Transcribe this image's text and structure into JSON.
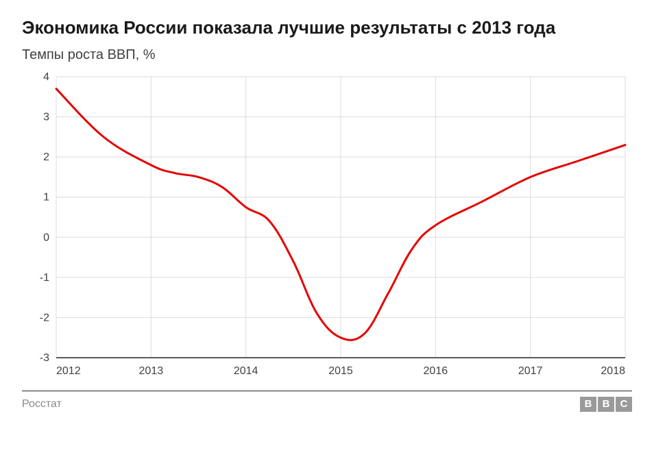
{
  "title": "Экономика России показала лучшие результаты с 2013 года",
  "subtitle": "Темпы роста ВВП, %",
  "source": "Росстат",
  "logo_letters": [
    "B",
    "B",
    "C"
  ],
  "chart": {
    "type": "line",
    "background_color": "#ffffff",
    "grid_color": "#dcdcdc",
    "axis_color": "#222222",
    "tick_font_size": 16,
    "tick_color": "#404040",
    "xlim": [
      2012,
      2018
    ],
    "ylim": [
      -3,
      4
    ],
    "xtick_step": 1,
    "ytick_step": 1,
    "xticks": [
      2012,
      2013,
      2014,
      2015,
      2016,
      2017,
      2018
    ],
    "yticks": [
      -3,
      -2,
      -1,
      0,
      1,
      2,
      3,
      4
    ],
    "series": [
      {
        "name": "gdp_growth",
        "color": "#e60000",
        "line_width": 3,
        "points": [
          {
            "x": 2012.0,
            "y": 3.7
          },
          {
            "x": 2012.5,
            "y": 2.5
          },
          {
            "x": 2013.0,
            "y": 1.8
          },
          {
            "x": 2013.25,
            "y": 1.6
          },
          {
            "x": 2013.5,
            "y": 1.5
          },
          {
            "x": 2013.75,
            "y": 1.25
          },
          {
            "x": 2014.0,
            "y": 0.75
          },
          {
            "x": 2014.25,
            "y": 0.4
          },
          {
            "x": 2014.5,
            "y": -0.6
          },
          {
            "x": 2014.75,
            "y": -1.9
          },
          {
            "x": 2015.0,
            "y": -2.5
          },
          {
            "x": 2015.25,
            "y": -2.4
          },
          {
            "x": 2015.5,
            "y": -1.4
          },
          {
            "x": 2015.75,
            "y": -0.3
          },
          {
            "x": 2016.0,
            "y": 0.3
          },
          {
            "x": 2016.5,
            "y": 0.9
          },
          {
            "x": 2017.0,
            "y": 1.5
          },
          {
            "x": 2017.5,
            "y": 1.9
          },
          {
            "x": 2018.0,
            "y": 2.3
          }
        ]
      }
    ]
  }
}
